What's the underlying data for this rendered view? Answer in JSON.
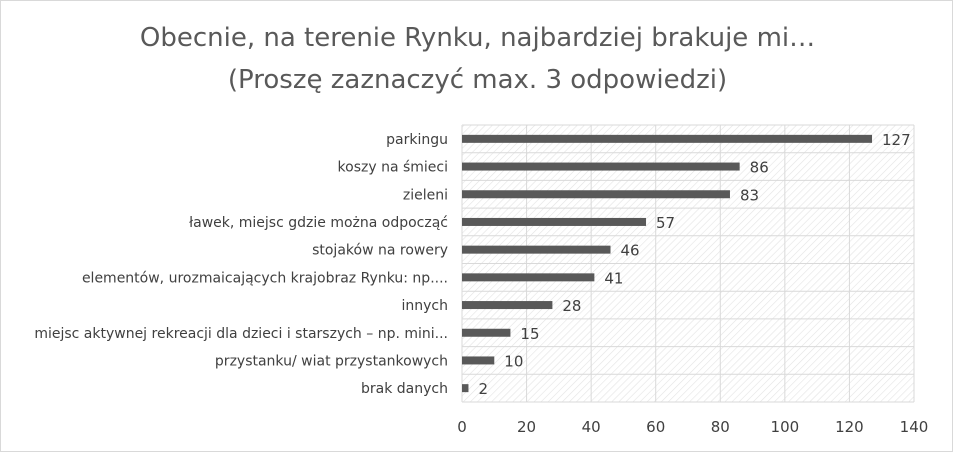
{
  "chart_data": {
    "type": "bar",
    "orientation": "horizontal",
    "title": "Obecnie, na terenie Rynku, najbardziej brakuje mi…",
    "subtitle": "(Proszę zaznaczyć max. 3 odpowiedzi)",
    "categories": [
      "parkingu",
      "koszy na śmieci",
      "zieleni",
      "ławek, miejsc gdzie można odpocząć",
      "stojaków na rowery",
      "elementów, urozmaicających krajobraz Rynku: np....",
      "innych",
      "miejsc aktywnej rekreacji dla dzieci i starszych – np. mini...",
      "przystanku/ wiat przystankowych",
      "brak danych"
    ],
    "values": [
      127,
      86,
      83,
      57,
      46,
      41,
      28,
      15,
      10,
      2
    ],
    "xlim": [
      0,
      140
    ],
    "xticks": [
      0,
      20,
      40,
      60,
      80,
      100,
      120,
      140
    ],
    "grid": true,
    "legend": "none",
    "bar_color": "#595959",
    "label_color": "#404040",
    "grid_color": "#d9d9d9"
  }
}
